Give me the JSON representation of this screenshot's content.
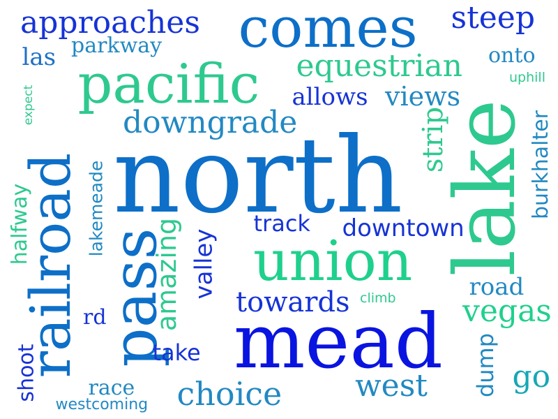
{
  "colors": {
    "background": "#ffffff",
    "dark_blue": "#1633d6",
    "royal_blue": "#0a14e0",
    "medium_blue": "#0d6fc8",
    "steel_blue": "#2289c2",
    "teal": "#17a7b6",
    "green": "#2ec98f",
    "bright_green": "#1fd08c"
  },
  "words": [
    {
      "text": "approaches",
      "color": "#1633d6"
    },
    {
      "text": "comes",
      "color": "#0d6fc8"
    },
    {
      "text": "steep",
      "color": "#1633d6"
    },
    {
      "text": "las",
      "color": "#1f72c4"
    },
    {
      "text": "parkway",
      "color": "#2289c2"
    },
    {
      "text": "onto",
      "color": "#2289c2"
    },
    {
      "text": "uphill",
      "color": "#2ec98f"
    },
    {
      "text": "pacific",
      "color": "#2ec98f"
    },
    {
      "text": "equestrian",
      "color": "#2ec98f"
    },
    {
      "text": "expect",
      "color": "#2ec98f"
    },
    {
      "text": "allows",
      "color": "#1633d6"
    },
    {
      "text": "views",
      "color": "#2289c2"
    },
    {
      "text": "downgrade",
      "color": "#2289c2"
    },
    {
      "text": "lake",
      "color": "#2ec98f"
    },
    {
      "text": "burkhalter",
      "color": "#2289c2"
    },
    {
      "text": "strip",
      "color": "#2ec98f"
    },
    {
      "text": "north",
      "color": "#0d6fc8"
    },
    {
      "text": "railroad",
      "color": "#0d6fc8"
    },
    {
      "text": "lakemeade",
      "color": "#2289c2"
    },
    {
      "text": "halfway",
      "color": "#2ec98f"
    },
    {
      "text": "pass",
      "color": "#0d6fc8"
    },
    {
      "text": "amazing",
      "color": "#2ec98f"
    },
    {
      "text": "valley",
      "color": "#1633d6"
    },
    {
      "text": "track",
      "color": "#1633d6"
    },
    {
      "text": "downtown",
      "color": "#1633d6"
    },
    {
      "text": "union",
      "color": "#1fd08c"
    },
    {
      "text": "road",
      "color": "#2289c2"
    },
    {
      "text": "towards",
      "color": "#1633d6"
    },
    {
      "text": "climb",
      "color": "#2ec98f"
    },
    {
      "text": "vegas",
      "color": "#1fd08c"
    },
    {
      "text": "rd",
      "color": "#1633d6"
    },
    {
      "text": "mead",
      "color": "#0a14e0"
    },
    {
      "text": "take",
      "color": "#1633d6"
    },
    {
      "text": "dump",
      "color": "#2289c2"
    },
    {
      "text": "go",
      "color": "#17a7b6"
    },
    {
      "text": "shoot",
      "color": "#1633d6"
    },
    {
      "text": "race",
      "color": "#2289c2"
    },
    {
      "text": "westcoming",
      "color": "#2289c2"
    },
    {
      "text": "choice",
      "color": "#2289c2"
    },
    {
      "text": "west",
      "color": "#2289c2"
    }
  ]
}
